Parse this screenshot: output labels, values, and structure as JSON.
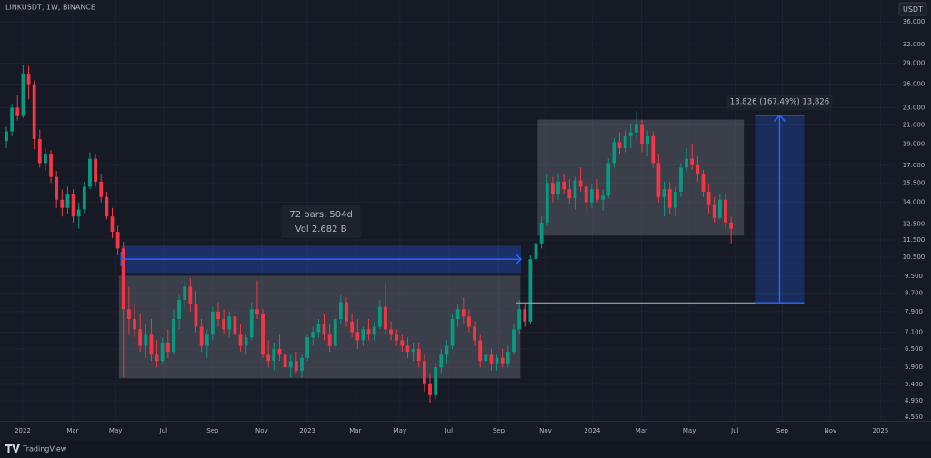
{
  "chart_data": {
    "type": "candlestick",
    "title": "LINKUSDT, 1W, BINANCE",
    "currency_button": "USDT",
    "brand": "TradingView",
    "scale": "log",
    "grid": true,
    "up_color": "#089981",
    "down_color": "#f23645",
    "xlim": [
      -1.14,
      159.5
    ],
    "ylim": [
      4.46,
      40.4
    ],
    "xticks": [
      {
        "value": 2.94,
        "label": "2022"
      },
      {
        "value": 11.9,
        "label": "Mar"
      },
      {
        "value": 19.6,
        "label": "May"
      },
      {
        "value": 28.2,
        "label": "Jul"
      },
      {
        "value": 37.0,
        "label": "Sep"
      },
      {
        "value": 45.8,
        "label": "Nov"
      },
      {
        "value": 54.0,
        "label": "2023"
      },
      {
        "value": 62.6,
        "label": "Mar"
      },
      {
        "value": 70.6,
        "label": "May"
      },
      {
        "value": 79.4,
        "label": "Jul"
      },
      {
        "value": 88.3,
        "label": "Sep"
      },
      {
        "value": 96.7,
        "label": "Nov"
      },
      {
        "value": 105.1,
        "label": "2024"
      },
      {
        "value": 113.9,
        "label": "Mar"
      },
      {
        "value": 122.5,
        "label": "May"
      },
      {
        "value": 130.7,
        "label": "Jul"
      },
      {
        "value": 139.2,
        "label": "Sep"
      },
      {
        "value": 147.8,
        "label": "Nov"
      },
      {
        "value": 156.8,
        "label": "2025"
      }
    ],
    "yticks": [
      {
        "value": 36,
        "label": "36.000"
      },
      {
        "value": 32,
        "label": "32.000"
      },
      {
        "value": 29,
        "label": "29.000"
      },
      {
        "value": 26,
        "label": "26.000"
      },
      {
        "value": 23,
        "label": "23.000"
      },
      {
        "value": 21,
        "label": "21.000"
      },
      {
        "value": 19,
        "label": "19.000"
      },
      {
        "value": 17,
        "label": "17.000"
      },
      {
        "value": 15.5,
        "label": "15.500"
      },
      {
        "value": 14,
        "label": "14.000"
      },
      {
        "value": 12.5,
        "label": "12.500"
      },
      {
        "value": 11.5,
        "label": "11.500"
      },
      {
        "value": 10.5,
        "label": "10.500"
      },
      {
        "value": 9.5,
        "label": "9.500"
      },
      {
        "value": 8.7,
        "label": "8.700"
      },
      {
        "value": 7.9,
        "label": "7.900"
      },
      {
        "value": 7.1,
        "label": "7.100"
      },
      {
        "value": 6.5,
        "label": "6.500"
      },
      {
        "value": 5.9,
        "label": "5.900"
      },
      {
        "value": 5.4,
        "label": "5.400"
      },
      {
        "value": 4.95,
        "label": "4.950"
      },
      {
        "value": 4.55,
        "label": "4.550"
      }
    ],
    "ohlc": [
      [
        19.3,
        20.8,
        18.6,
        20.3
      ],
      [
        20.3,
        23.5,
        19.8,
        23.0
      ],
      [
        23.0,
        24.5,
        21.5,
        22.0
      ],
      [
        22.0,
        28.8,
        21.8,
        27.5
      ],
      [
        27.5,
        28.6,
        24.0,
        26.0
      ],
      [
        26.0,
        26.5,
        18.5,
        19.5
      ],
      [
        19.5,
        20.5,
        16.8,
        17.2
      ],
      [
        17.2,
        18.6,
        16.5,
        18.0
      ],
      [
        18.0,
        18.4,
        15.5,
        16.0
      ],
      [
        16.0,
        16.5,
        13.6,
        14.2
      ],
      [
        14.2,
        15.0,
        13.0,
        13.6
      ],
      [
        13.6,
        15.2,
        13.2,
        14.6
      ],
      [
        14.6,
        15.0,
        12.6,
        13.0
      ],
      [
        13.0,
        14.0,
        12.2,
        13.5
      ],
      [
        13.5,
        15.6,
        13.2,
        15.2
      ],
      [
        15.2,
        18.2,
        15.0,
        17.6
      ],
      [
        17.6,
        18.0,
        15.2,
        15.6
      ],
      [
        15.6,
        16.2,
        14.0,
        14.4
      ],
      [
        14.4,
        14.8,
        12.8,
        13.0
      ],
      [
        13.0,
        13.6,
        11.6,
        12.0
      ],
      [
        12.0,
        12.4,
        10.6,
        11.0
      ],
      [
        11.0,
        11.4,
        5.6,
        8.0
      ],
      [
        8.0,
        9.0,
        7.0,
        7.6
      ],
      [
        7.6,
        8.2,
        6.9,
        7.2
      ],
      [
        7.2,
        7.8,
        6.4,
        6.6
      ],
      [
        6.6,
        7.4,
        6.2,
        7.0
      ],
      [
        7.0,
        7.6,
        6.1,
        6.3
      ],
      [
        6.3,
        6.8,
        5.9,
        6.1
      ],
      [
        6.1,
        6.9,
        6.0,
        6.7
      ],
      [
        6.7,
        7.2,
        6.2,
        6.4
      ],
      [
        6.4,
        8.0,
        6.3,
        7.6
      ],
      [
        7.6,
        8.6,
        7.2,
        8.4
      ],
      [
        8.4,
        9.3,
        8.0,
        9.0
      ],
      [
        9.0,
        9.4,
        7.9,
        8.2
      ],
      [
        8.2,
        8.8,
        7.1,
        7.3
      ],
      [
        7.3,
        7.6,
        6.4,
        6.6
      ],
      [
        6.6,
        7.2,
        6.2,
        7.0
      ],
      [
        7.0,
        8.1,
        6.8,
        7.9
      ],
      [
        7.9,
        8.3,
        7.3,
        7.6
      ],
      [
        7.6,
        8.0,
        7.0,
        7.2
      ],
      [
        7.2,
        7.9,
        6.9,
        7.7
      ],
      [
        7.7,
        8.0,
        6.8,
        7.0
      ],
      [
        7.0,
        7.4,
        6.4,
        6.6
      ],
      [
        6.6,
        7.0,
        6.3,
        6.9
      ],
      [
        6.9,
        8.3,
        6.8,
        8.0
      ],
      [
        8.0,
        9.3,
        7.6,
        7.8
      ],
      [
        7.8,
        8.0,
        6.2,
        6.3
      ],
      [
        6.3,
        6.8,
        5.9,
        6.1
      ],
      [
        6.1,
        6.7,
        5.8,
        6.5
      ],
      [
        6.5,
        7.0,
        6.1,
        6.3
      ],
      [
        6.3,
        6.5,
        5.7,
        5.9
      ],
      [
        5.9,
        6.3,
        5.6,
        6.1
      ],
      [
        6.1,
        6.4,
        5.7,
        5.8
      ],
      [
        5.8,
        6.3,
        5.6,
        6.2
      ],
      [
        6.2,
        7.0,
        6.1,
        6.9
      ],
      [
        6.9,
        7.3,
        6.6,
        7.1
      ],
      [
        7.1,
        7.6,
        6.9,
        7.4
      ],
      [
        7.4,
        7.8,
        6.8,
        7.0
      ],
      [
        7.0,
        7.4,
        6.4,
        6.6
      ],
      [
        6.6,
        7.8,
        6.5,
        7.6
      ],
      [
        7.6,
        8.6,
        7.4,
        8.3
      ],
      [
        8.3,
        8.5,
        7.3,
        7.5
      ],
      [
        7.5,
        7.8,
        6.9,
        7.1
      ],
      [
        7.1,
        7.6,
        6.5,
        6.8
      ],
      [
        6.8,
        7.3,
        6.6,
        7.2
      ],
      [
        7.2,
        7.6,
        6.8,
        7.0
      ],
      [
        7.0,
        7.5,
        6.8,
        7.3
      ],
      [
        7.3,
        8.4,
        7.2,
        8.1
      ],
      [
        8.1,
        9.1,
        7.0,
        7.2
      ],
      [
        7.2,
        7.5,
        6.8,
        7.0
      ],
      [
        7.0,
        7.2,
        6.6,
        6.8
      ],
      [
        6.8,
        7.0,
        6.4,
        6.6
      ],
      [
        6.6,
        6.9,
        6.2,
        6.4
      ],
      [
        6.4,
        6.7,
        6.1,
        6.5
      ],
      [
        6.5,
        6.7,
        5.9,
        6.1
      ],
      [
        6.1,
        6.3,
        5.2,
        5.4
      ],
      [
        5.4,
        5.7,
        4.9,
        5.1
      ],
      [
        5.1,
        6.0,
        5.0,
        5.9
      ],
      [
        5.9,
        6.5,
        5.7,
        6.3
      ],
      [
        6.3,
        6.8,
        6.0,
        6.6
      ],
      [
        6.6,
        7.8,
        6.5,
        7.6
      ],
      [
        7.6,
        8.2,
        7.3,
        8.0
      ],
      [
        8.0,
        8.5,
        7.4,
        7.7
      ],
      [
        7.7,
        8.0,
        7.1,
        7.3
      ],
      [
        7.3,
        7.5,
        6.6,
        6.8
      ],
      [
        6.8,
        7.0,
        5.9,
        6.1
      ],
      [
        6.1,
        6.6,
        5.9,
        6.3
      ],
      [
        6.3,
        6.5,
        5.8,
        6.0
      ],
      [
        6.0,
        6.3,
        5.8,
        6.2
      ],
      [
        6.2,
        6.5,
        5.9,
        6.0
      ],
      [
        6.0,
        6.6,
        5.9,
        6.4
      ],
      [
        6.4,
        7.4,
        6.3,
        7.2
      ],
      [
        7.2,
        8.4,
        7.0,
        8.0
      ],
      [
        8.0,
        8.2,
        7.3,
        7.5
      ],
      [
        7.5,
        10.6,
        7.4,
        10.4
      ],
      [
        10.4,
        11.6,
        10.1,
        11.3
      ],
      [
        11.3,
        13.0,
        11.0,
        12.6
      ],
      [
        12.6,
        16.2,
        12.4,
        15.5
      ],
      [
        15.5,
        16.0,
        14.0,
        14.6
      ],
      [
        14.6,
        16.3,
        14.2,
        15.6
      ],
      [
        15.6,
        16.2,
        14.6,
        15.0
      ],
      [
        15.0,
        15.8,
        13.9,
        14.3
      ],
      [
        14.3,
        16.0,
        13.5,
        15.7
      ],
      [
        15.7,
        16.8,
        14.8,
        15.2
      ],
      [
        15.2,
        15.6,
        13.3,
        14.0
      ],
      [
        14.0,
        15.4,
        13.6,
        15.0
      ],
      [
        15.0,
        15.8,
        14.0,
        14.2
      ],
      [
        14.2,
        15.0,
        13.4,
        14.5
      ],
      [
        14.5,
        17.6,
        14.3,
        17.2
      ],
      [
        17.2,
        19.6,
        16.8,
        19.2
      ],
      [
        19.2,
        20.2,
        18.0,
        18.6
      ],
      [
        18.6,
        20.4,
        18.2,
        19.8
      ],
      [
        19.8,
        21.2,
        18.6,
        20.2
      ],
      [
        20.2,
        22.6,
        19.5,
        21.0
      ],
      [
        21.0,
        21.6,
        18.2,
        19.0
      ],
      [
        19.0,
        20.4,
        17.8,
        19.8
      ],
      [
        19.8,
        20.3,
        16.8,
        17.2
      ],
      [
        17.2,
        18.0,
        14.0,
        14.4
      ],
      [
        14.4,
        15.6,
        13.0,
        15.0
      ],
      [
        15.0,
        15.6,
        13.2,
        13.6
      ],
      [
        13.6,
        15.2,
        13.0,
        14.8
      ],
      [
        14.8,
        17.2,
        14.4,
        16.8
      ],
      [
        16.8,
        18.6,
        16.4,
        17.6
      ],
      [
        17.6,
        19.0,
        16.6,
        17.0
      ],
      [
        17.0,
        17.8,
        15.6,
        16.2
      ],
      [
        16.2,
        16.6,
        14.4,
        14.8
      ],
      [
        14.8,
        15.4,
        13.2,
        13.8
      ],
      [
        13.8,
        14.4,
        12.6,
        12.9
      ],
      [
        12.9,
        14.6,
        12.8,
        14.2
      ],
      [
        14.2,
        14.6,
        12.2,
        12.6
      ],
      [
        12.6,
        13.0,
        11.3,
        12.2
      ]
    ],
    "range_boxes": [
      {
        "i0": 20.2,
        "i1": 92.2,
        "top": 9.53,
        "bottom": 5.57
      },
      {
        "i0": 95.3,
        "i1": 132.3,
        "top": 21.6,
        "bottom": 11.76
      }
    ],
    "date_range": {
      "i0": 20.6,
      "i1": 92.3,
      "top": 11.16,
      "bottom": 9.67,
      "arrow": 10.4,
      "label_lines": [
        "72 bars, 504d",
        "Vol 2.682 B"
      ]
    },
    "measure": {
      "i0": 134.3,
      "i1": 143.1,
      "top": 22.1,
      "bottom": 8.27,
      "line_from": 91.5,
      "label": "13.826 (167.49%) 13,826"
    }
  }
}
